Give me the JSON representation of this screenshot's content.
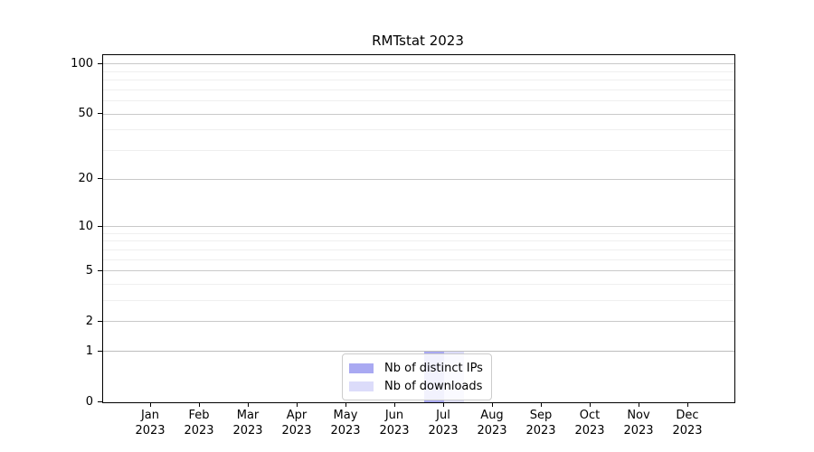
{
  "chart_data": {
    "type": "bar",
    "title": "RMTstat 2023",
    "categories": [
      "Jan 2023",
      "Feb 2023",
      "Mar 2023",
      "Apr 2023",
      "May 2023",
      "Jun 2023",
      "Jul 2023",
      "Aug 2023",
      "Sep 2023",
      "Oct 2023",
      "Nov 2023",
      "Dec 2023"
    ],
    "series": [
      {
        "name": "Nb of distinct IPs",
        "color": "#a9a9f2",
        "values": [
          0,
          0,
          0,
          0,
          0,
          0,
          1,
          0,
          0,
          0,
          0,
          0
        ]
      },
      {
        "name": "Nb of downloads",
        "color": "#dcdcfa",
        "values": [
          0,
          0,
          0,
          0,
          0,
          0,
          1,
          0,
          0,
          0,
          0,
          0
        ]
      }
    ],
    "xlabel": "",
    "ylabel": "",
    "yscale": "log1p",
    "ylim": [
      0,
      113
    ],
    "yticks": [
      0,
      1,
      2,
      5,
      10,
      20,
      50,
      100
    ],
    "yticks_minor": [
      3,
      4,
      6,
      7,
      8,
      9,
      30,
      40,
      60,
      70,
      80,
      90
    ],
    "grid": true,
    "legend_position": "lower center"
  },
  "colors": {
    "bar_distinct_ips": "#a9a9f2",
    "bar_downloads": "#dcdcfa",
    "grid_major": "#c9c9c9",
    "grid_minor": "#efefef",
    "spine": "#000000",
    "legend_border": "#cccccc"
  }
}
